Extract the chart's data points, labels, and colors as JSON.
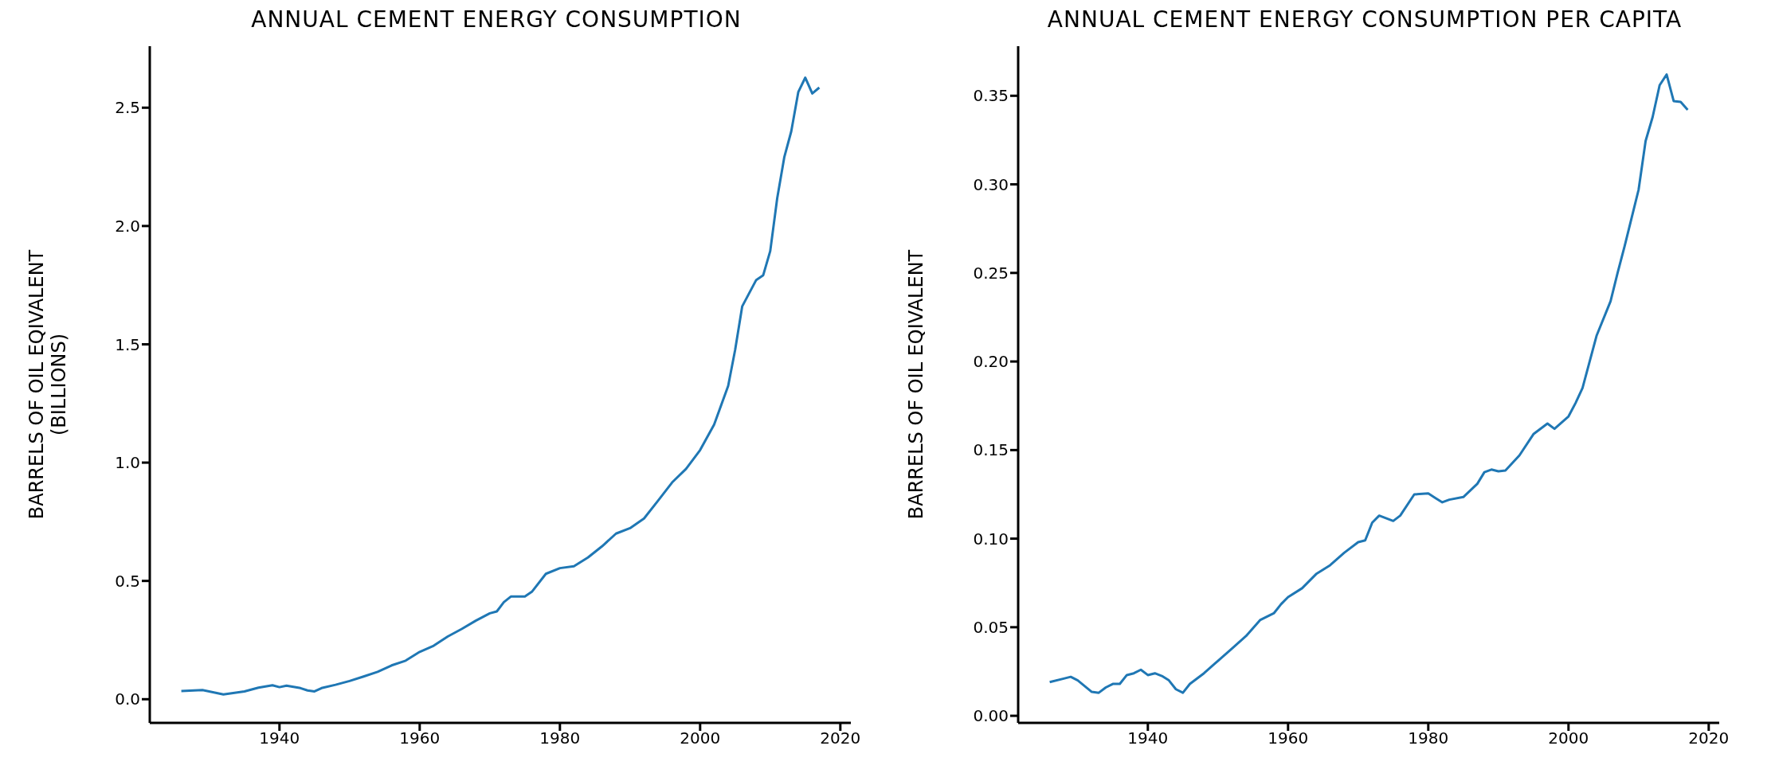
{
  "chart_data": [
    {
      "type": "line",
      "title": "ANNUAL CEMENT ENERGY CONSUMPTION",
      "ylabel": "BARRELS OF OIL EQIVALENT\n(BILLIONS)",
      "grid": false,
      "legend": false,
      "marker": "none",
      "line_style": "solid",
      "xlim": [
        1921.5,
        2021.5
      ],
      "xticks": [
        1940,
        1960,
        1980,
        2000,
        2020
      ],
      "ylim": [
        -0.1,
        2.76
      ],
      "yticks": [
        {
          "value": 0,
          "label": "0.0"
        },
        {
          "value": 0.5,
          "label": "0.5"
        },
        {
          "value": 1,
          "label": "1.0"
        },
        {
          "value": 1.5,
          "label": "1.5"
        },
        {
          "value": 2,
          "label": "2.0"
        },
        {
          "value": 2.5,
          "label": "2.5"
        }
      ],
      "series": [
        {
          "color": "#1f77b4",
          "x": [
            1926,
            1929,
            1932,
            1935,
            1937,
            1939,
            1940,
            1941,
            1943,
            1944,
            1945,
            1946,
            1948,
            1950,
            1952,
            1954,
            1956,
            1958,
            1960,
            1962,
            1964,
            1966,
            1968,
            1970,
            1971,
            1972,
            1973,
            1975,
            1976,
            1978,
            1980,
            1982,
            1984,
            1986,
            1988,
            1990,
            1992,
            1994,
            1996,
            1998,
            2000,
            2002,
            2004,
            2005,
            2006,
            2008,
            2009,
            2010,
            2011,
            2012,
            2013,
            2014,
            2015,
            2016,
            2017
          ],
          "values": [
            0.035,
            0.039,
            0.02,
            0.033,
            0.049,
            0.059,
            0.051,
            0.057,
            0.047,
            0.037,
            0.033,
            0.047,
            0.061,
            0.077,
            0.096,
            0.116,
            0.143,
            0.163,
            0.2,
            0.226,
            0.265,
            0.297,
            0.332,
            0.363,
            0.371,
            0.41,
            0.434,
            0.434,
            0.454,
            0.53,
            0.554,
            0.562,
            0.599,
            0.646,
            0.7,
            0.723,
            0.764,
            0.839,
            0.916,
            0.974,
            1.053,
            1.161,
            1.324,
            1.477,
            1.66,
            1.772,
            1.792,
            1.894,
            2.118,
            2.29,
            2.4,
            2.566,
            2.627,
            2.56,
            2.585
          ]
        }
      ]
    },
    {
      "type": "line",
      "title": "ANNUAL CEMENT ENERGY CONSUMPTION PER CAPITA",
      "ylabel": "BARRELS OF OIL EQIVALENT",
      "grid": false,
      "legend": false,
      "marker": "none",
      "line_style": "solid",
      "xlim": [
        1921.5,
        2021.5
      ],
      "xticks": [
        1940,
        1960,
        1980,
        2000,
        2020
      ],
      "ylim": [
        -0.004,
        0.378
      ],
      "yticks": [
        {
          "value": 0,
          "label": "0.00"
        },
        {
          "value": 0.05,
          "label": "0.05"
        },
        {
          "value": 0.1,
          "label": "0.10"
        },
        {
          "value": 0.15,
          "label": "0.15"
        },
        {
          "value": 0.2,
          "label": "0.20"
        },
        {
          "value": 0.25,
          "label": "0.25"
        },
        {
          "value": 0.3,
          "label": "0.30"
        },
        {
          "value": 0.35,
          "label": "0.35"
        }
      ],
      "series": [
        {
          "color": "#1f77b4",
          "x": [
            1926,
            1928,
            1929,
            1930,
            1932,
            1933,
            1934,
            1935,
            1936,
            1937,
            1938,
            1939,
            1940,
            1941,
            1942,
            1943,
            1944,
            1945,
            1946,
            1948,
            1950,
            1952,
            1954,
            1956,
            1958,
            1959,
            1960,
            1962,
            1964,
            1966,
            1968,
            1970,
            1971,
            1972,
            1973,
            1975,
            1976,
            1978,
            1980,
            1981,
            1982,
            1983,
            1985,
            1987,
            1988,
            1989,
            1990,
            1991,
            1993,
            1995,
            1997,
            1998,
            2000,
            2001,
            2002,
            2004,
            2006,
            2007,
            2008,
            2010,
            2011,
            2012,
            2013,
            2014,
            2015,
            2016,
            2017
          ],
          "values": [
            0.019,
            0.021,
            0.022,
            0.02,
            0.0135,
            0.013,
            0.016,
            0.018,
            0.018,
            0.023,
            0.024,
            0.026,
            0.023,
            0.024,
            0.0225,
            0.02,
            0.015,
            0.013,
            0.018,
            0.024,
            0.031,
            0.038,
            0.045,
            0.054,
            0.058,
            0.063,
            0.067,
            0.072,
            0.08,
            0.085,
            0.092,
            0.098,
            0.099,
            0.109,
            0.113,
            0.11,
            0.113,
            0.125,
            0.1255,
            0.123,
            0.1205,
            0.122,
            0.1235,
            0.131,
            0.1375,
            0.139,
            0.138,
            0.1385,
            0.147,
            0.159,
            0.165,
            0.162,
            0.169,
            0.1765,
            0.185,
            0.2145,
            0.234,
            0.25,
            0.265,
            0.297,
            0.3245,
            0.338,
            0.356,
            0.362,
            0.347,
            0.3465,
            0.342
          ]
        }
      ]
    }
  ]
}
